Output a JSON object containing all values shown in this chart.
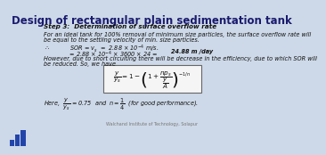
{
  "title": "Design of rectangular plain sedimentation tank",
  "bg_color": "#cdd9e8",
  "title_color": "#1a1a6e",
  "text_color": "#111111",
  "step_header": "Step 3:  Determination of surface overflow rate",
  "line1": "For an ideal tank for 100% removal of minimum size particles, the surface overflow rate will",
  "line2": "be equal to the settling velocity of min. size particles.",
  "line3_pre": "∴           SOR = v",
  "line3_post": " =  2.88 × 10⁻⁴ m/s.",
  "line4": "         = 2.88 × 10⁻⁴ × 3600 × 24 = ",
  "line4_bold": "24.88 m /day",
  "line5": "However, due to short circuiting there will be decrease in the efficiency, due to which SOR will",
  "line6": "be reduced. So, we have",
  "line7_pre": "Here,  ",
  "line7_mid": " = 0.75  and  n = ",
  "line7_post": "  (for good performance).",
  "footer": "Walchand Institute of Technology, Solapur",
  "box_color": "#f5f5f5",
  "box_edge": "#666666",
  "person_color": "#44bbdd"
}
